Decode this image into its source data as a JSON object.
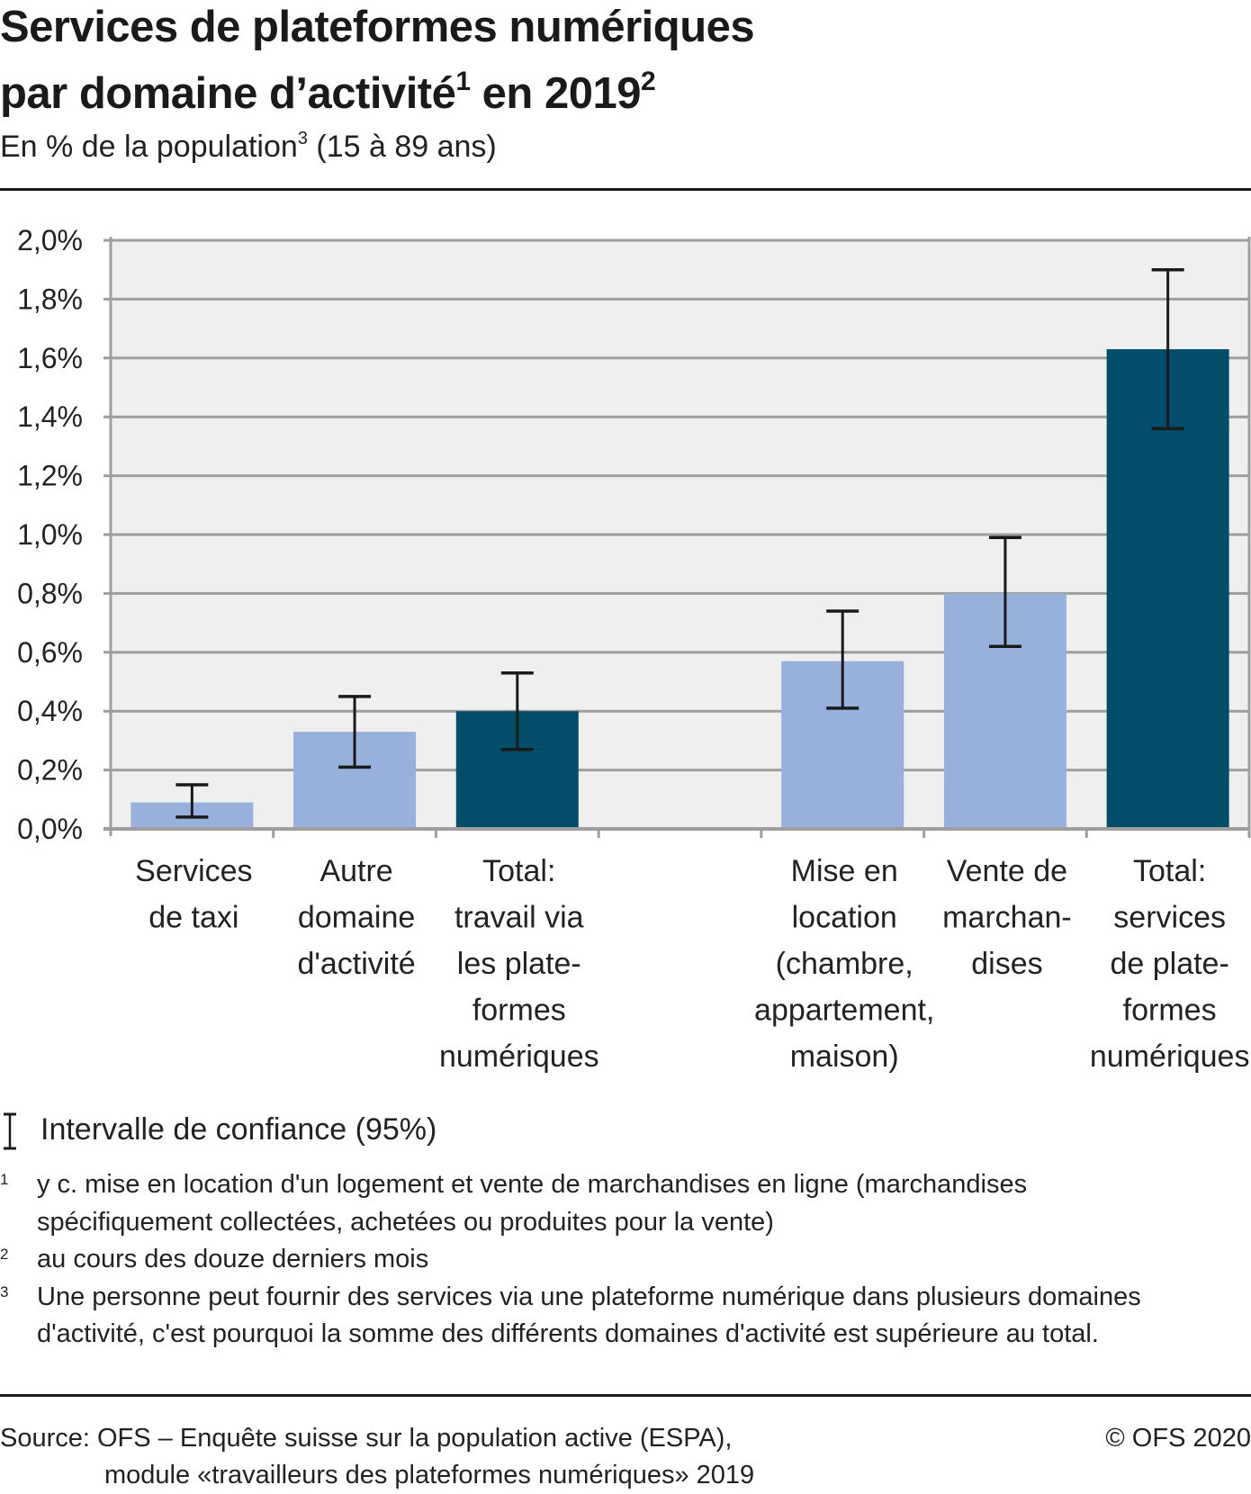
{
  "header": {
    "title_line1": "Services de plateformes numériques",
    "title_line2": "par domaine d’activité",
    "title_line2_sup1": "1",
    "title_line2_rest": " en 2019",
    "title_line2_sup2": "2",
    "subtitle_main": "En % de la population",
    "subtitle_sup": "3",
    "subtitle_rest": " (15 à 89 ans)"
  },
  "colors": {
    "light_bar": "#97b1dc",
    "dark_bar": "#024d69",
    "plot_bg": "#efefef",
    "grid": "#9e9e9e",
    "error_bar": "#1a1a1a"
  },
  "chart_data": {
    "type": "bar",
    "title": "Services de plateformes numériques par domaine d’activité en 2019",
    "subtitle": "En % de la population (15 à 89 ans)",
    "xlabel": "",
    "ylabel": "",
    "ylim": [
      0,
      2.0
    ],
    "yticks": [
      0,
      0.2,
      0.4,
      0.6,
      0.8,
      1.0,
      1.2,
      1.4,
      1.6,
      1.8,
      2.0
    ],
    "ytick_labels": [
      "0,0%",
      "0,2%",
      "0,4%",
      "0,6%",
      "0,8%",
      "1,0%",
      "1,2%",
      "1,4%",
      "1,6%",
      "1,8%",
      "2,0%"
    ],
    "grid": true,
    "categories": [
      {
        "label_lines": [
          "Services",
          "de taxi"
        ],
        "value": 0.09,
        "ci_low": 0.04,
        "ci_high": 0.15,
        "style": "light"
      },
      {
        "label_lines": [
          "Autre",
          "domaine",
          "d'activité"
        ],
        "value": 0.33,
        "ci_low": 0.21,
        "ci_high": 0.45,
        "style": "light"
      },
      {
        "label_lines": [
          "Total:",
          "travail via",
          "les plate-",
          "formes",
          "numériques"
        ],
        "value": 0.4,
        "ci_low": 0.27,
        "ci_high": 0.53,
        "style": "dark"
      },
      {
        "label_lines": [],
        "value": null,
        "ci_low": null,
        "ci_high": null,
        "style": "empty"
      },
      {
        "label_lines": [
          "Mise en",
          "location",
          "(chambre,",
          "appartement,",
          "maison)"
        ],
        "value": 0.57,
        "ci_low": 0.41,
        "ci_high": 0.74,
        "style": "light"
      },
      {
        "label_lines": [
          "Vente de",
          "marchan-",
          "dises"
        ],
        "value": 0.8,
        "ci_low": 0.62,
        "ci_high": 0.99,
        "style": "light"
      },
      {
        "label_lines": [
          "Total:",
          "services",
          "de plate-",
          "formes",
          "numériques"
        ],
        "value": 1.63,
        "ci_low": 1.36,
        "ci_high": 1.9,
        "style": "dark"
      }
    ],
    "legend": "Intervalle de confiance (95%)",
    "legend_placement": "bottom-left"
  },
  "legend": {
    "icon": "error-bar-icon",
    "label": "Intervalle de confiance (95%)"
  },
  "footnotes": [
    {
      "num": "1",
      "lines": [
        "y c. mise en location d'un logement et vente de marchandises en ligne (marchandises",
        "spécifiquement collectées, achetées ou produites pour la vente)"
      ]
    },
    {
      "num": "2",
      "lines": [
        "au cours des douze derniers mois"
      ]
    },
    {
      "num": "3",
      "lines": [
        "Une personne peut fournir des services via une plateforme numérique dans plusieurs domaines",
        "d'activité, c'est pourquoi la somme des différents domaines d'activité est supérieure au total."
      ]
    }
  ],
  "source": {
    "line1": "Source: OFS – Enquête suisse sur la population active (ESPA),",
    "line2": "module «travailleurs des plateformes numériques» 2019",
    "copyright": "© OFS 2020"
  }
}
